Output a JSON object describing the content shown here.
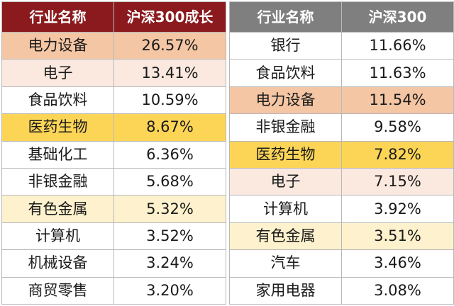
{
  "colors": {
    "header_left": "#8b1a1e",
    "header_right": "#7f7f7f",
    "highlight_peach": "#f4c6a4",
    "highlight_light_peach": "#fbe9df",
    "highlight_gold": "#fcd557",
    "highlight_light_yellow": "#fdf2cd",
    "plain": "#ffffff"
  },
  "left_table": {
    "headers": [
      "行业名称",
      "沪深300成长"
    ],
    "rows": [
      {
        "industry": "电力设备",
        "value": "26.57%",
        "color": "#f4c6a4"
      },
      {
        "industry": "电子",
        "value": "13.41%",
        "color": "#fbe9df"
      },
      {
        "industry": "食品饮料",
        "value": "10.59%",
        "color": "#ffffff"
      },
      {
        "industry": "医药生物",
        "value": "8.67%",
        "color": "#fcd557"
      },
      {
        "industry": "基础化工",
        "value": "6.36%",
        "color": "#ffffff"
      },
      {
        "industry": "非银金融",
        "value": "5.68%",
        "color": "#ffffff"
      },
      {
        "industry": "有色金属",
        "value": "5.32%",
        "color": "#fdf2cd"
      },
      {
        "industry": "计算机",
        "value": "3.52%",
        "color": "#ffffff"
      },
      {
        "industry": "机械设备",
        "value": "3.24%",
        "color": "#ffffff"
      },
      {
        "industry": "商贸零售",
        "value": "3.20%",
        "color": "#ffffff"
      }
    ]
  },
  "right_table": {
    "headers": [
      "行业名称",
      "沪深300"
    ],
    "rows": [
      {
        "industry": "银行",
        "value": "11.66%",
        "color": "#ffffff"
      },
      {
        "industry": "食品饮料",
        "value": "11.63%",
        "color": "#ffffff"
      },
      {
        "industry": "电力设备",
        "value": "11.54%",
        "color": "#f4c6a4"
      },
      {
        "industry": "非银金融",
        "value": "9.58%",
        "color": "#ffffff"
      },
      {
        "industry": "医药生物",
        "value": "7.82%",
        "color": "#fcd557"
      },
      {
        "industry": "电子",
        "value": "7.15%",
        "color": "#fbe9df"
      },
      {
        "industry": "计算机",
        "value": "3.92%",
        "color": "#ffffff"
      },
      {
        "industry": "有色金属",
        "value": "3.51%",
        "color": "#fdf2cd"
      },
      {
        "industry": "汽车",
        "value": "3.46%",
        "color": "#ffffff"
      },
      {
        "industry": "家用电器",
        "value": "3.08%",
        "color": "#ffffff"
      }
    ]
  }
}
